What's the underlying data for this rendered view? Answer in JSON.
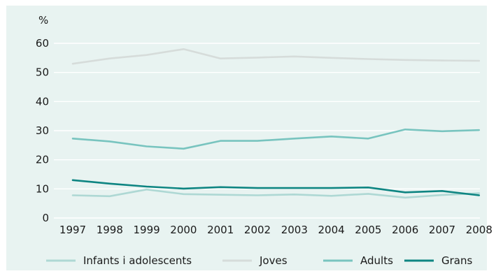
{
  "chart_data": {
    "type": "line",
    "title": "",
    "xlabel": "",
    "ylabel": "%",
    "ylim": [
      0,
      60
    ],
    "yticks": [
      "0",
      "10",
      "20",
      "30",
      "40",
      "50",
      "60"
    ],
    "categories": [
      "1997",
      "1998",
      "1999",
      "2000",
      "2001",
      "2002",
      "2003",
      "2004",
      "2005",
      "2006",
      "2007",
      "2008"
    ],
    "grid": "horizontal",
    "legend_position": "bottom",
    "series": [
      {
        "name": "Infants i adolescents",
        "color": "#aed8d4",
        "values": [
          7.8,
          7.5,
          9.8,
          8.2,
          8.0,
          7.8,
          8.1,
          7.6,
          8.3,
          7.0,
          7.9,
          8.5
        ]
      },
      {
        "name": "Joves",
        "color": "#d6dcda",
        "values": [
          53.0,
          54.8,
          56.0,
          58.0,
          54.8,
          55.1,
          55.5,
          55.0,
          54.6,
          54.3,
          54.1,
          54.0
        ]
      },
      {
        "name": "Adults",
        "color": "#78c4bf",
        "values": [
          27.3,
          26.3,
          24.6,
          23.8,
          26.5,
          26.5,
          27.3,
          28.0,
          27.3,
          30.4,
          29.8,
          30.2
        ]
      },
      {
        "name": "Grans",
        "color": "#0e8582",
        "values": [
          13.0,
          11.8,
          10.8,
          10.1,
          10.6,
          10.3,
          10.3,
          10.3,
          10.5,
          8.8,
          9.3,
          7.8
        ]
      }
    ]
  }
}
